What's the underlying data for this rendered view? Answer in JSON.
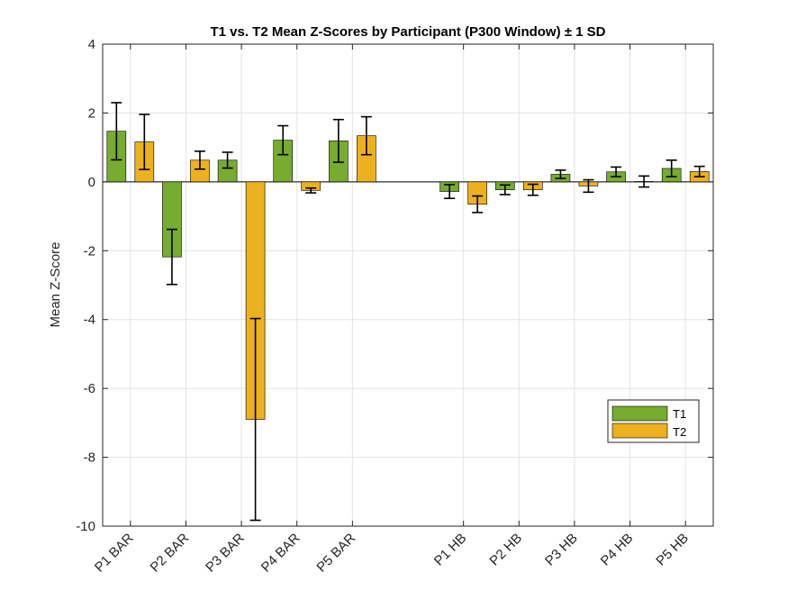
{
  "chart_data": {
    "type": "bar",
    "title": "T1 vs. T2 Mean Z-Scores by Participant (P300 Window) ± 1 SD",
    "xlabel": "",
    "ylabel": "Mean Z-Score",
    "ylim": [
      -10,
      4
    ],
    "yticks": [
      -10,
      -8,
      -6,
      -4,
      -2,
      0,
      2,
      4
    ],
    "grid": true,
    "legend_position": "lower-right",
    "categories": [
      "P1 BAR",
      "P2 BAR",
      "P3 BAR",
      "P4 BAR",
      "P5 BAR",
      "",
      "P1 HB",
      "P2 HB",
      "P3 HB",
      "P4 HB",
      "P5 HB"
    ],
    "series": [
      {
        "name": "T1",
        "color": "#77ac30",
        "values": [
          1.47,
          -2.18,
          0.63,
          1.21,
          1.19,
          null,
          -0.28,
          -0.23,
          0.22,
          0.29,
          0.39
        ],
        "sd": [
          0.83,
          0.8,
          0.23,
          0.42,
          0.62,
          null,
          0.2,
          0.14,
          0.12,
          0.14,
          0.24
        ]
      },
      {
        "name": "T2",
        "color": "#edb120",
        "values": [
          1.16,
          0.63,
          -6.9,
          -0.25,
          1.34,
          null,
          -0.65,
          -0.23,
          -0.12,
          0.01,
          0.3
        ],
        "sd": [
          0.8,
          0.26,
          2.93,
          0.07,
          0.55,
          null,
          0.24,
          0.16,
          0.18,
          0.16,
          0.15
        ]
      }
    ]
  }
}
